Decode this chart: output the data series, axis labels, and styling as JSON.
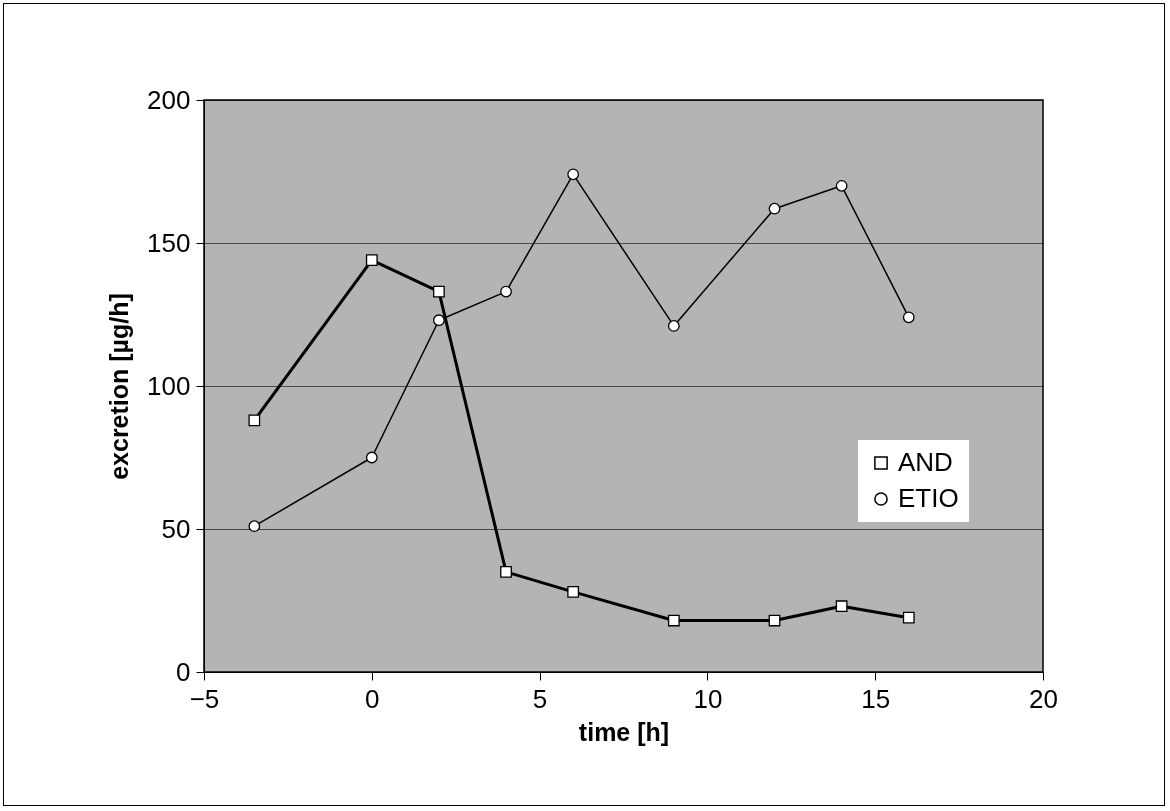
{
  "chart_data": {
    "type": "line",
    "xlabel": "time [h]",
    "ylabel": "excretion [µg/h]",
    "xlim": [
      -5,
      20
    ],
    "xticks": [
      -5,
      0,
      5,
      10,
      15,
      20
    ],
    "ylim": [
      0,
      200
    ],
    "yticks": [
      0,
      50,
      100,
      150,
      200
    ],
    "grid": "y",
    "legend": "right",
    "series": [
      {
        "name": "AND",
        "color": "#000000",
        "marker": "square",
        "x": [
          -3.5,
          0,
          2,
          4,
          6,
          9,
          12,
          14,
          16
        ],
        "values": [
          88,
          144,
          133,
          35,
          28,
          18,
          18,
          23,
          19
        ]
      },
      {
        "name": "ETIO",
        "color": "#000000",
        "marker": "circle",
        "x": [
          -3.5,
          0,
          2,
          4,
          6,
          9,
          12,
          14,
          16
        ],
        "values": [
          51,
          75,
          123,
          133,
          174,
          121,
          162,
          170,
          124
        ]
      }
    ]
  }
}
